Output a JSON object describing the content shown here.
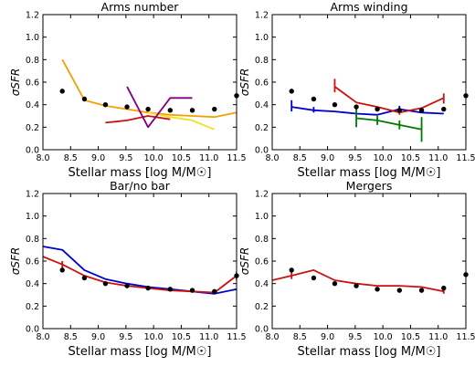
{
  "chart_data": [
    {
      "type": "line",
      "title": "Arms number",
      "xlabel": "Stellar mass [log  M/M☉]",
      "ylabel": "σSFR",
      "xlim": [
        8.0,
        11.5
      ],
      "ylim": [
        0.0,
        1.2
      ],
      "xticks": [
        "8.0",
        "8.5",
        "9.0",
        "9.5",
        "10.0",
        "10.5",
        "11.0",
        "11.5"
      ],
      "yticks": [
        "0.0",
        "0.2",
        "0.4",
        "0.6",
        "0.8",
        "1.0",
        "1.2"
      ],
      "scatter": {
        "color": "#000000",
        "x": [
          8.35,
          8.75,
          9.13,
          9.52,
          9.9,
          10.3,
          10.7,
          11.1,
          11.5
        ],
        "y": [
          0.52,
          0.45,
          0.4,
          0.38,
          0.36,
          0.35,
          0.35,
          0.36,
          0.48
        ]
      },
      "series": [
        {
          "color": "#f5a000",
          "x": [
            8.35,
            8.75,
            9.13,
            9.52,
            9.9,
            10.3,
            10.7,
            11.1,
            11.5
          ],
          "y": [
            0.8,
            0.44,
            0.39,
            0.36,
            0.33,
            0.31,
            0.3,
            0.29,
            0.33
          ],
          "errors": []
        },
        {
          "color": "#f0e020",
          "x": [
            9.9,
            10.3,
            10.7,
            11.1
          ],
          "y": [
            0.33,
            0.29,
            0.26,
            0.18
          ],
          "errors": []
        },
        {
          "color": "#cc1010",
          "x": [
            9.13,
            9.52,
            9.9,
            10.3
          ],
          "y": [
            0.24,
            0.26,
            0.3,
            0.27
          ],
          "errors": []
        },
        {
          "color": "#800080",
          "x": [
            9.52,
            9.9,
            10.3,
            10.7
          ],
          "y": [
            0.56,
            0.2,
            0.46,
            0.46
          ],
          "errors": []
        }
      ]
    },
    {
      "type": "line",
      "title": "Arms winding",
      "xlabel": "Stellar mass [log  M/M☉]",
      "ylabel": "σSFR",
      "xlim": [
        8.0,
        11.5
      ],
      "ylim": [
        0.0,
        1.2
      ],
      "xticks": [
        "8.0",
        "8.5",
        "9.0",
        "9.5",
        "10.0",
        "10.5",
        "11.0",
        "11.5"
      ],
      "yticks": [
        "0.0",
        "0.2",
        "0.4",
        "0.6",
        "0.8",
        "1.0",
        "1.2"
      ],
      "scatter": {
        "color": "#000000",
        "x": [
          8.35,
          8.75,
          9.13,
          9.52,
          9.9,
          10.3,
          10.7,
          11.1,
          11.5
        ],
        "y": [
          0.52,
          0.45,
          0.4,
          0.38,
          0.36,
          0.35,
          0.35,
          0.36,
          0.48
        ]
      },
      "series": [
        {
          "color": "#0000cc",
          "x": [
            8.35,
            8.75,
            9.13,
            9.52,
            9.9,
            10.3,
            10.7,
            11.1
          ],
          "y": [
            0.38,
            0.35,
            0.34,
            0.32,
            0.31,
            0.36,
            0.33,
            0.32
          ],
          "errors": [
            {
              "x": 8.35,
              "lo": 0.34,
              "hi": 0.44
            },
            {
              "x": 8.75,
              "lo": 0.33,
              "hi": 0.38
            },
            {
              "x": 10.3,
              "lo": 0.33,
              "hi": 0.39
            }
          ]
        },
        {
          "color": "#007a00",
          "x": [
            9.52,
            9.9,
            10.3,
            10.7
          ],
          "y": [
            0.28,
            0.26,
            0.22,
            0.18
          ],
          "errors": [
            {
              "x": 9.52,
              "lo": 0.2,
              "hi": 0.37
            },
            {
              "x": 9.9,
              "lo": 0.22,
              "hi": 0.3
            },
            {
              "x": 10.3,
              "lo": 0.18,
              "hi": 0.26
            },
            {
              "x": 10.7,
              "lo": 0.07,
              "hi": 0.29
            }
          ]
        },
        {
          "color": "#cc1010",
          "x": [
            9.13,
            9.52,
            9.9,
            10.3,
            10.7,
            11.1
          ],
          "y": [
            0.56,
            0.42,
            0.38,
            0.33,
            0.37,
            0.46
          ],
          "errors": [
            {
              "x": 9.13,
              "lo": 0.51,
              "hi": 0.63
            },
            {
              "x": 10.3,
              "lo": 0.31,
              "hi": 0.35
            },
            {
              "x": 11.1,
              "lo": 0.41,
              "hi": 0.5
            }
          ]
        }
      ]
    },
    {
      "type": "line",
      "title": "Bar/no bar",
      "xlabel": "Stellar mass [log  M/M☉]",
      "ylabel": "σSFR",
      "xlim": [
        8.0,
        11.5
      ],
      "ylim": [
        0.0,
        1.2
      ],
      "xticks": [
        "8.0",
        "8.5",
        "9.0",
        "9.5",
        "10.0",
        "10.5",
        "11.0",
        "11.5"
      ],
      "yticks": [
        "0.0",
        "0.2",
        "0.4",
        "0.6",
        "0.8",
        "1.0",
        "1.2"
      ],
      "scatter": {
        "color": "#000000",
        "x": [
          8.35,
          8.75,
          9.13,
          9.52,
          9.9,
          10.3,
          10.7,
          11.1,
          11.5
        ],
        "y": [
          0.52,
          0.45,
          0.4,
          0.38,
          0.36,
          0.35,
          0.34,
          0.33,
          0.47
        ]
      },
      "series": [
        {
          "color": "#0000cc",
          "x": [
            8.0,
            8.35,
            8.75,
            9.13,
            9.52,
            9.9,
            10.3,
            10.7,
            11.1,
            11.5
          ],
          "y": [
            0.73,
            0.7,
            0.52,
            0.44,
            0.4,
            0.37,
            0.35,
            0.33,
            0.31,
            0.35
          ],
          "errors": []
        },
        {
          "color": "#cc1010",
          "x": [
            8.0,
            8.35,
            8.75,
            9.13,
            9.52,
            9.9,
            10.3,
            10.7,
            11.1,
            11.5
          ],
          "y": [
            0.64,
            0.57,
            0.47,
            0.41,
            0.38,
            0.36,
            0.34,
            0.33,
            0.32,
            0.47
          ],
          "errors": [
            {
              "x": 8.35,
              "lo": 0.54,
              "hi": 0.6
            },
            {
              "x": 11.5,
              "lo": 0.43,
              "hi": 0.51
            }
          ]
        }
      ]
    },
    {
      "type": "line",
      "title": "Mergers",
      "xlabel": "Stellar mass [log  M/M☉]",
      "ylabel": "σSFR",
      "xlim": [
        8.0,
        11.5
      ],
      "ylim": [
        0.0,
        1.2
      ],
      "xticks": [
        "8.0",
        "8.5",
        "9.0",
        "9.5",
        "10.0",
        "10.5",
        "11.0",
        "11.5"
      ],
      "yticks": [
        "0.0",
        "0.2",
        "0.4",
        "0.6",
        "0.8",
        "1.0",
        "1.2"
      ],
      "scatter": {
        "color": "#000000",
        "x": [
          8.35,
          8.75,
          9.13,
          9.52,
          9.9,
          10.3,
          10.7,
          11.1,
          11.5
        ],
        "y": [
          0.52,
          0.45,
          0.4,
          0.38,
          0.35,
          0.34,
          0.34,
          0.36,
          0.48
        ]
      },
      "series": [
        {
          "color": "#cc1010",
          "x": [
            8.0,
            8.35,
            8.75,
            9.13,
            9.52,
            9.9,
            10.3,
            10.7,
            11.1
          ],
          "y": [
            0.43,
            0.47,
            0.52,
            0.43,
            0.4,
            0.38,
            0.38,
            0.37,
            0.33
          ],
          "errors": [
            {
              "x": 8.35,
              "lo": 0.44,
              "hi": 0.5
            },
            {
              "x": 11.1,
              "lo": 0.31,
              "hi": 0.36
            }
          ]
        }
      ]
    }
  ]
}
